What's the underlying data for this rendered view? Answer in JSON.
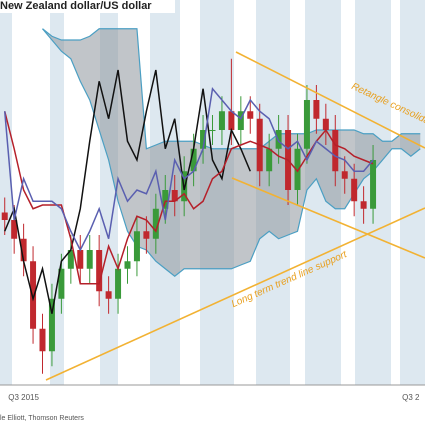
{
  "chart_data": {
    "type": "candlestick",
    "title": "New Zealand dollar/US dollar",
    "source": "le Elliott, Thomson Reuters",
    "categories": [
      null,
      null,
      "Q3 2015",
      null,
      null,
      null,
      null,
      null,
      null,
      null,
      null,
      null,
      null,
      null,
      null,
      null,
      null,
      null,
      null,
      null,
      null,
      null,
      null,
      null,
      null,
      null,
      null,
      null,
      null,
      null,
      null,
      null,
      null,
      null,
      null,
      null,
      null,
      null,
      null,
      null,
      null,
      null,
      null,
      "Q3 2",
      null
    ],
    "xlim": [
      -0.5,
      44.5
    ],
    "ylim": [
      0,
      100
    ],
    "open": [
      46,
      44,
      39,
      33,
      15,
      9,
      23,
      31,
      36,
      31,
      36,
      25,
      23,
      31,
      33,
      41,
      39,
      47,
      52,
      49,
      57,
      63,
      68,
      68,
      73,
      68,
      73,
      71,
      57,
      63,
      68,
      52,
      63,
      76,
      71,
      68,
      57,
      55,
      49,
      47,
      null,
      null,
      null,
      null,
      null
    ],
    "high": [
      50,
      48,
      43,
      37,
      19,
      27,
      35,
      40,
      40,
      40,
      40,
      29,
      35,
      37,
      45,
      45,
      51,
      56,
      56,
      61,
      67,
      72,
      72,
      77,
      87,
      77,
      77,
      75,
      67,
      72,
      72,
      67,
      80,
      80,
      75,
      72,
      61,
      59,
      53,
      64,
      null,
      null,
      null,
      null,
      null
    ],
    "low": [
      40,
      35,
      29,
      11,
      3,
      5,
      19,
      27,
      27,
      27,
      21,
      19,
      19,
      27,
      29,
      35,
      35,
      43,
      45,
      45,
      53,
      59,
      64,
      64,
      64,
      64,
      67,
      53,
      53,
      59,
      48,
      48,
      59,
      67,
      64,
      53,
      51,
      45,
      43,
      43,
      null,
      null,
      null,
      null,
      null
    ],
    "close": [
      44,
      39,
      33,
      15,
      9,
      23,
      31,
      36,
      31,
      36,
      25,
      23,
      31,
      33,
      41,
      39,
      47,
      52,
      49,
      57,
      63,
      68,
      68,
      73,
      68,
      73,
      71,
      57,
      63,
      68,
      52,
      63,
      76,
      71,
      68,
      57,
      55,
      49,
      47,
      60,
      null,
      null,
      null,
      null,
      null
    ],
    "up_color": "#3a9a3a",
    "down_color": "#c0282e",
    "cloud": {
      "color": "#8e959c",
      "edge_color": "#4b9fc3",
      "span_a": [
        null,
        null,
        null,
        null,
        95,
        93,
        92,
        92,
        92,
        93,
        95,
        95,
        95,
        95,
        95,
        63,
        64,
        65,
        65,
        65,
        65,
        64,
        63,
        63,
        63,
        63,
        63,
        63,
        65,
        67,
        67,
        67,
        67,
        68,
        68,
        68,
        68,
        68,
        67,
        67,
        65,
        65,
        67,
        67,
        67
      ],
      "span_b": [
        null,
        null,
        null,
        null,
        95,
        92,
        89,
        87,
        81,
        76,
        68,
        60,
        49,
        41,
        37,
        36,
        33,
        31,
        29,
        31,
        31,
        31,
        31,
        31,
        31,
        32,
        33,
        39,
        41,
        39,
        40,
        41,
        52,
        55,
        49,
        47,
        47,
        51,
        55,
        57,
        60,
        63,
        63,
        61,
        63
      ]
    },
    "series": [
      {
        "color": "#111111",
        "values": [
          41,
          47,
          33,
          23,
          31,
          19,
          33,
          36,
          47,
          65,
          81,
          71,
          84,
          65,
          60,
          73,
          84,
          63,
          71,
          52,
          63,
          79,
          60,
          55,
          68,
          63,
          57,
          null,
          null,
          null,
          null,
          null,
          null,
          null,
          null,
          null,
          null,
          null,
          null,
          null,
          null,
          null,
          null,
          null,
          null
        ]
      },
      {
        "color": "#b5202a",
        "values": [
          73,
          63,
          52,
          47,
          48,
          48,
          48,
          39,
          27,
          27,
          27,
          37,
          31,
          39,
          45,
          44,
          41,
          49,
          49,
          51,
          47,
          49,
          55,
          57,
          63,
          64,
          65,
          64,
          63,
          61,
          60,
          57,
          61,
          65,
          68,
          64,
          63,
          61,
          60,
          59,
          null,
          null,
          null,
          null,
          null
        ]
      },
      {
        "color": "#5a5fb0",
        "values": [
          73,
          44,
          55,
          49,
          49,
          49,
          47,
          41,
          36,
          41,
          47,
          39,
          55,
          49,
          52,
          51,
          57,
          44,
          60,
          55,
          57,
          63,
          79,
          76,
          73,
          71,
          76,
          73,
          71,
          65,
          63,
          65,
          60,
          65,
          63,
          61,
          60,
          57,
          57,
          60,
          null,
          null,
          null,
          null,
          null
        ]
      }
    ],
    "annotations": [
      "Retangle consolidat",
      "Long term trend line support"
    ]
  }
}
